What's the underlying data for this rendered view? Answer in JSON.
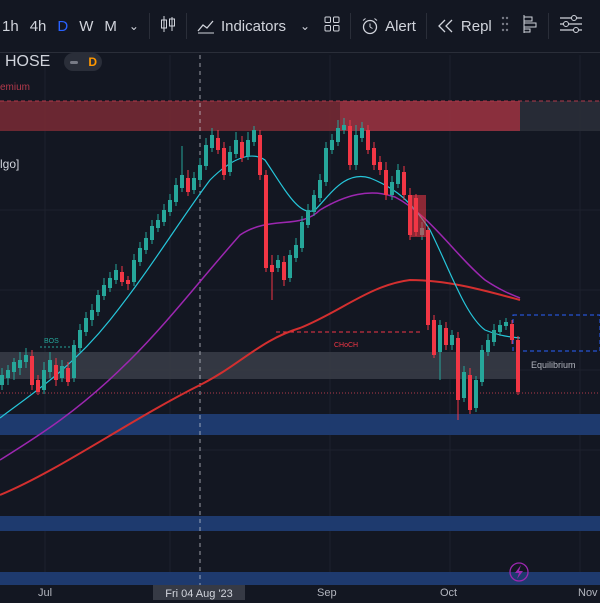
{
  "toolbar": {
    "timeframes": [
      "1h",
      "4h",
      "D",
      "W",
      "M"
    ],
    "indicators_label": "Indicators",
    "alert_label": "Alert",
    "replay_label": "Repl"
  },
  "symbol": {
    "exchange": "HOSE",
    "interval_badge": "D"
  },
  "annotations": {
    "premium": "emium",
    "algo": "lgo]",
    "bos": "BOS",
    "choch": "CHoCH",
    "equilibrium": "Equilibrium"
  },
  "xaxis": {
    "labels": [
      "Jul",
      "Sep",
      "Oct",
      "Nov"
    ],
    "crosshair_label": "Fri 04 Aug '23"
  },
  "colors": {
    "up": "#26a69a",
    "down": "#f23645",
    "background": "#131722",
    "premium_zone": "#b2394b",
    "discount_zone": "#1e3a6e",
    "ema_fast": "#26c6da",
    "ema_mid": "#9c27b0",
    "ema_slow": "#d32f2f"
  }
}
